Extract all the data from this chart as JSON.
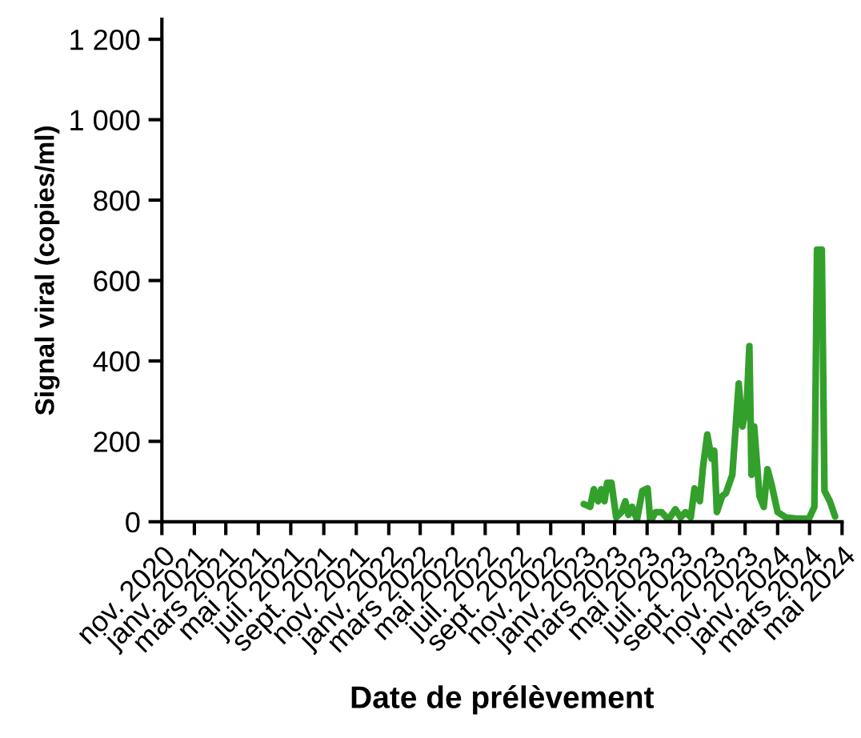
{
  "chart_data": {
    "type": "line",
    "xlabel": "Date de prélèvement",
    "ylabel": "Signal viral (copies/ml)",
    "x": [
      "2023-01-02",
      "2023-01-14",
      "2023-01-21",
      "2023-01-29",
      "2023-02-04",
      "2023-02-10",
      "2023-02-15",
      "2023-02-23",
      "2023-03-04",
      "2023-03-14",
      "2023-03-21",
      "2023-03-27",
      "2023-04-03",
      "2023-04-12",
      "2023-04-22",
      "2023-05-02",
      "2023-05-07",
      "2023-05-17",
      "2023-05-28",
      "2023-06-10",
      "2023-06-23",
      "2023-07-03",
      "2023-07-12",
      "2023-07-22",
      "2023-07-29",
      "2023-08-08",
      "2023-08-14",
      "2023-08-22",
      "2023-08-30",
      "2023-09-04",
      "2023-09-09",
      "2023-09-19",
      "2023-09-26",
      "2023-10-08",
      "2023-10-20",
      "2023-10-27",
      "2023-11-04",
      "2023-11-09",
      "2023-11-13",
      "2023-11-18",
      "2023-11-28",
      "2023-12-06",
      "2023-12-13",
      "2023-12-21",
      "2024-01-01",
      "2024-01-16",
      "2024-02-05",
      "2024-02-29",
      "2024-03-10",
      "2024-03-15",
      "2024-03-24",
      "2024-03-29",
      "2024-04-08",
      "2024-04-18"
    ],
    "series": [
      {
        "color": "#33a02c",
        "values": [
          44,
          37,
          81,
          51,
          81,
          51,
          97,
          97,
          11,
          24,
          51,
          17,
          37,
          5,
          77,
          83,
          0,
          24,
          24,
          5,
          31,
          11,
          24,
          11,
          83,
          51,
          137,
          217,
          157,
          177,
          24,
          64,
          71,
          117,
          344,
          237,
          291,
          437,
          117,
          237,
          64,
          37,
          131,
          91,
          24,
          11,
          8,
          8,
          37,
          677,
          677,
          77,
          51,
          13
        ]
      }
    ],
    "xlim": [
      "2020-11-01",
      "2024-05-01"
    ],
    "xticks": [
      {
        "value": "2020-11-01",
        "label": "nov. 2020"
      },
      {
        "value": "2021-01-01",
        "label": "janv. 2021"
      },
      {
        "value": "2021-03-01",
        "label": "mars 2021"
      },
      {
        "value": "2021-05-01",
        "label": "mai 2021"
      },
      {
        "value": "2021-07-01",
        "label": "juil. 2021"
      },
      {
        "value": "2021-09-01",
        "label": "sept. 2021"
      },
      {
        "value": "2021-11-01",
        "label": "nov. 2021"
      },
      {
        "value": "2022-01-01",
        "label": "janv. 2022"
      },
      {
        "value": "2022-03-01",
        "label": "mars 2022"
      },
      {
        "value": "2022-05-01",
        "label": "mai 2022"
      },
      {
        "value": "2022-07-01",
        "label": "juil. 2022"
      },
      {
        "value": "2022-09-01",
        "label": "sept. 2022"
      },
      {
        "value": "2022-11-01",
        "label": "nov. 2022"
      },
      {
        "value": "2023-01-01",
        "label": "janv. 2023"
      },
      {
        "value": "2023-03-01",
        "label": "mars 2023"
      },
      {
        "value": "2023-05-01",
        "label": "mai 2023"
      },
      {
        "value": "2023-07-01",
        "label": "juil. 2023"
      },
      {
        "value": "2023-09-01",
        "label": "sept. 2023"
      },
      {
        "value": "2023-11-01",
        "label": "nov. 2023"
      },
      {
        "value": "2024-01-01",
        "label": "janv. 2024"
      },
      {
        "value": "2024-03-01",
        "label": "mars 2024"
      },
      {
        "value": "2024-05-01",
        "label": "mai 2024"
      }
    ],
    "ylim": [
      0,
      1250
    ],
    "yticks": [
      0,
      200,
      400,
      600,
      800,
      {
        "value": 1000,
        "label": "1 000"
      },
      {
        "value": 1200,
        "label": "1 200"
      }
    ],
    "grid": false,
    "marker": "none",
    "line_style": "solid"
  }
}
